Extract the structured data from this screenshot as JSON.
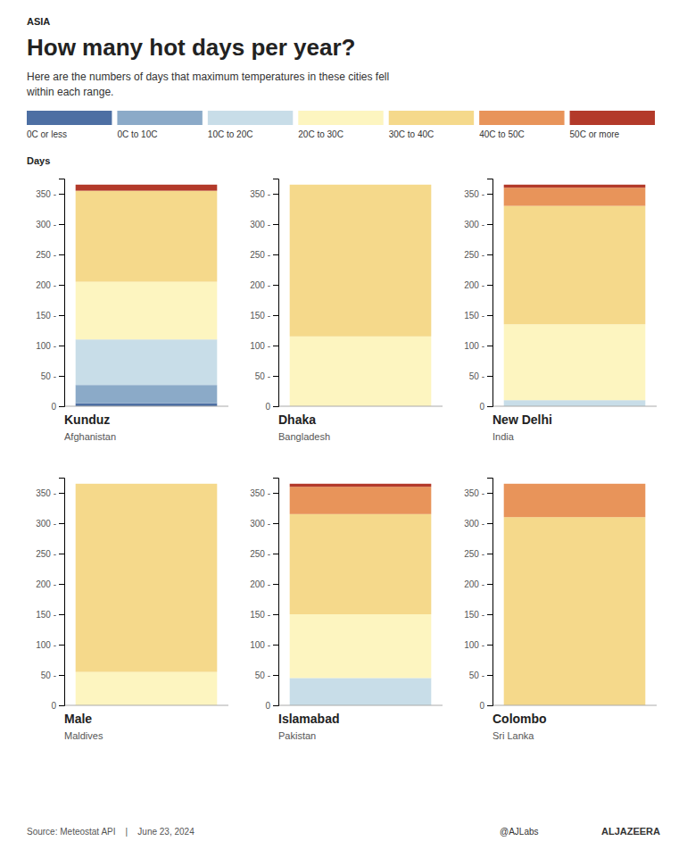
{
  "chart_data": {
    "type": "bar",
    "stacked": true,
    "title": "How many hot days per year?",
    "subtitle": "Here are the numbers of days that maximum temperatures in these cities fell\nwithin each range.",
    "ylabel": "Days",
    "annotations": [
      "ASIA",
      "Source: Meteostat API    |    June 23, 2024",
      "@AJLabs",
      "ALJAZEERA"
    ],
    "categories": [
      "Kunduz",
      "Dhaka",
      "New Delhi",
      "Male",
      "Islamabad",
      "Colombo"
    ],
    "subcategories": [
      "Afghanistan",
      "Bangladesh",
      "India",
      "Maldives",
      "Pakistan",
      "Sri Lanka"
    ],
    "series": [
      {
        "name": "0C or less",
        "color": "#4d6fa3",
        "values": [
          5,
          0,
          0,
          0,
          0,
          0
        ]
      },
      {
        "name": "0C to 10C",
        "color": "#8baac8",
        "values": [
          30,
          0,
          0,
          0,
          0,
          0
        ]
      },
      {
        "name": "10C to 20C",
        "color": "#c8dde8",
        "values": [
          75,
          0,
          10,
          0,
          45,
          0
        ]
      },
      {
        "name": "20C to 30C",
        "color": "#fdf5c0",
        "values": [
          95,
          115,
          125,
          55,
          105,
          0
        ]
      },
      {
        "name": "30C to 40C",
        "color": "#f5d98b",
        "values": [
          150,
          250,
          195,
          310,
          165,
          310
        ]
      },
      {
        "name": "40C to 50C",
        "color": "#e8945a",
        "values": [
          0,
          0,
          30,
          0,
          45,
          55
        ]
      },
      {
        "name": "50C or more",
        "color": "#b33a2a",
        "values": [
          10,
          0,
          5,
          0,
          5,
          0
        ]
      }
    ],
    "ylim": [
      0,
      375
    ],
    "yticks": [
      0,
      {
        "value": 50,
        "label": "50 -"
      },
      {
        "value": 100,
        "label": "100 -"
      },
      {
        "value": 150,
        "label": "150 -"
      },
      {
        "value": 200,
        "label": "200 -"
      },
      {
        "value": 250,
        "label": "250 -"
      },
      {
        "value": 300,
        "label": "300 -"
      },
      {
        "value": 350,
        "label": "350 -"
      }
    ],
    "grid": false,
    "legend": "top"
  }
}
